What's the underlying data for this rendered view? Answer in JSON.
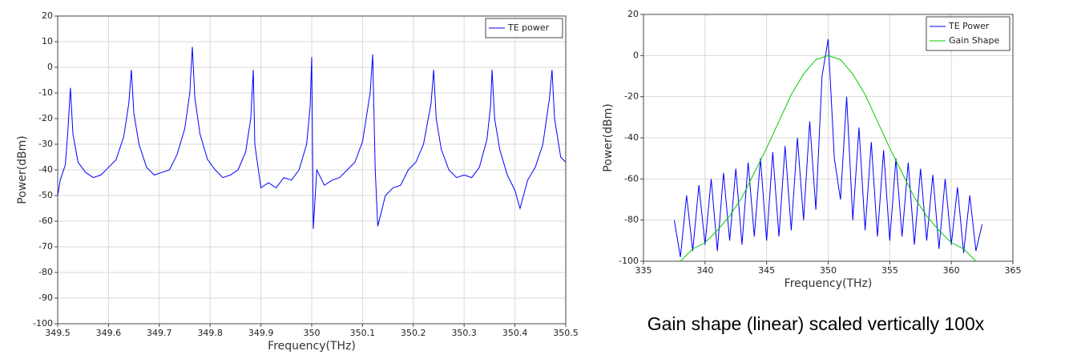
{
  "chart_data": [
    {
      "type": "line",
      "xlabel": "Frequency(THz)",
      "ylabel": "Power(dBm)",
      "xlim": [
        349.5,
        350.5
      ],
      "ylim": [
        -100,
        20
      ],
      "xticks": [
        349.5,
        349.6,
        349.7,
        349.8,
        349.9,
        350,
        350.1,
        350.2,
        350.3,
        350.4,
        350.5
      ],
      "yticks": [
        -100,
        -90,
        -80,
        -70,
        -60,
        -50,
        -40,
        -30,
        -20,
        -10,
        0,
        10,
        20
      ],
      "grid": true,
      "legend": "upper right",
      "series": [
        {
          "name": "TE power",
          "color": "#0000ff",
          "x": [
            349.5,
            349.505,
            349.515,
            349.52,
            349.525,
            349.53,
            349.54,
            349.555,
            349.57,
            349.585,
            349.6,
            349.615,
            349.63,
            349.64,
            349.645,
            349.65,
            349.66,
            349.675,
            349.69,
            349.705,
            349.72,
            349.735,
            349.75,
            349.76,
            349.765,
            349.77,
            349.78,
            349.795,
            349.81,
            349.825,
            349.84,
            349.855,
            349.87,
            349.88,
            349.885,
            349.888,
            349.9,
            349.915,
            349.93,
            349.945,
            349.96,
            349.975,
            349.99,
            349.997,
            350.0,
            350.003,
            350.01,
            350.025,
            350.04,
            350.055,
            350.07,
            350.085,
            350.1,
            350.115,
            350.12,
            350.125,
            350.13,
            350.145,
            350.16,
            350.175,
            350.19,
            350.205,
            350.22,
            350.235,
            350.24,
            350.245,
            350.255,
            350.27,
            350.285,
            350.3,
            350.315,
            350.33,
            350.345,
            350.352,
            350.355,
            350.36,
            350.37,
            350.385,
            350.4,
            350.41,
            350.425,
            350.44,
            350.455,
            350.468,
            350.473,
            350.478,
            350.49,
            350.5
          ],
          "values": [
            -50,
            -44,
            -38,
            -25,
            -8,
            -26,
            -37,
            -41,
            -43,
            -42,
            -39,
            -36,
            -27,
            -14,
            -1,
            -18,
            -30,
            -39,
            -42,
            -41,
            -40,
            -34,
            -24,
            -10,
            8,
            -12,
            -26,
            -36,
            -40,
            -43,
            -42,
            -40,
            -33,
            -20,
            -1,
            -30,
            -47,
            -45,
            -47,
            -43,
            -44,
            -40,
            -30,
            -15,
            4,
            -63,
            -40,
            -46,
            -44,
            -43,
            -40,
            -37,
            -29,
            -10,
            5,
            -40,
            -62,
            -50,
            -47,
            -46,
            -40,
            -37,
            -30,
            -14,
            -1,
            -20,
            -32,
            -40,
            -43,
            -42,
            -43,
            -39,
            -28,
            -15,
            -1,
            -20,
            -32,
            -42,
            -48,
            -55,
            -44,
            -39,
            -30,
            -12,
            -1,
            -20,
            -35,
            -37
          ]
        }
      ]
    },
    {
      "type": "line",
      "xlabel": "Frequency(THz)",
      "ylabel": "Power(dBm)",
      "xlim": [
        335,
        365
      ],
      "ylim": [
        -100,
        20
      ],
      "xticks": [
        335,
        340,
        345,
        350,
        355,
        360,
        365
      ],
      "yticks": [
        -100,
        -80,
        -60,
        -40,
        -20,
        0,
        20
      ],
      "grid": true,
      "legend": "upper right",
      "annotation": "Gain shape (linear) scaled vertically 100x",
      "series": [
        {
          "name": "TE Power",
          "color": "#0000ff",
          "x": [
            337.5,
            338,
            338.5,
            339,
            339.5,
            340,
            340.5,
            341,
            341.5,
            342,
            342.5,
            343,
            343.5,
            344,
            344.5,
            345,
            345.5,
            346,
            346.5,
            347,
            347.5,
            348,
            348.5,
            349,
            349.5,
            350,
            350.5,
            351,
            351.5,
            352,
            352.5,
            353,
            353.5,
            354,
            354.5,
            355,
            355.5,
            356,
            356.5,
            357,
            357.5,
            358,
            358.5,
            359,
            359.5,
            360,
            360.5,
            361,
            361.5,
            362,
            362.5
          ],
          "values": [
            -80,
            -98,
            -68,
            -95,
            -63,
            -92,
            -60,
            -95,
            -57,
            -90,
            -55,
            -92,
            -52,
            -88,
            -50,
            -90,
            -47,
            -88,
            -44,
            -85,
            -40,
            -80,
            -32,
            -75,
            -10,
            8,
            -50,
            -70,
            -20,
            -80,
            -35,
            -85,
            -42,
            -88,
            -46,
            -90,
            -50,
            -88,
            -52,
            -92,
            -55,
            -90,
            -58,
            -94,
            -60,
            -92,
            -64,
            -96,
            -68,
            -95,
            -82
          ]
        },
        {
          "name": "Gain Shape",
          "color": "#00cc00",
          "x": [
            338,
            339,
            340,
            341,
            342,
            343,
            344,
            345,
            346,
            347,
            348,
            349,
            350,
            351,
            352,
            353,
            354,
            355,
            356,
            357,
            358,
            359,
            360,
            361,
            362
          ],
          "values": [
            -100,
            -94,
            -91,
            -85,
            -78,
            -69,
            -57,
            -45,
            -32,
            -19,
            -9,
            -2,
            0,
            -2,
            -9,
            -19,
            -32,
            -45,
            -57,
            -69,
            -78,
            -85,
            -91,
            -94,
            -100
          ]
        }
      ]
    }
  ]
}
